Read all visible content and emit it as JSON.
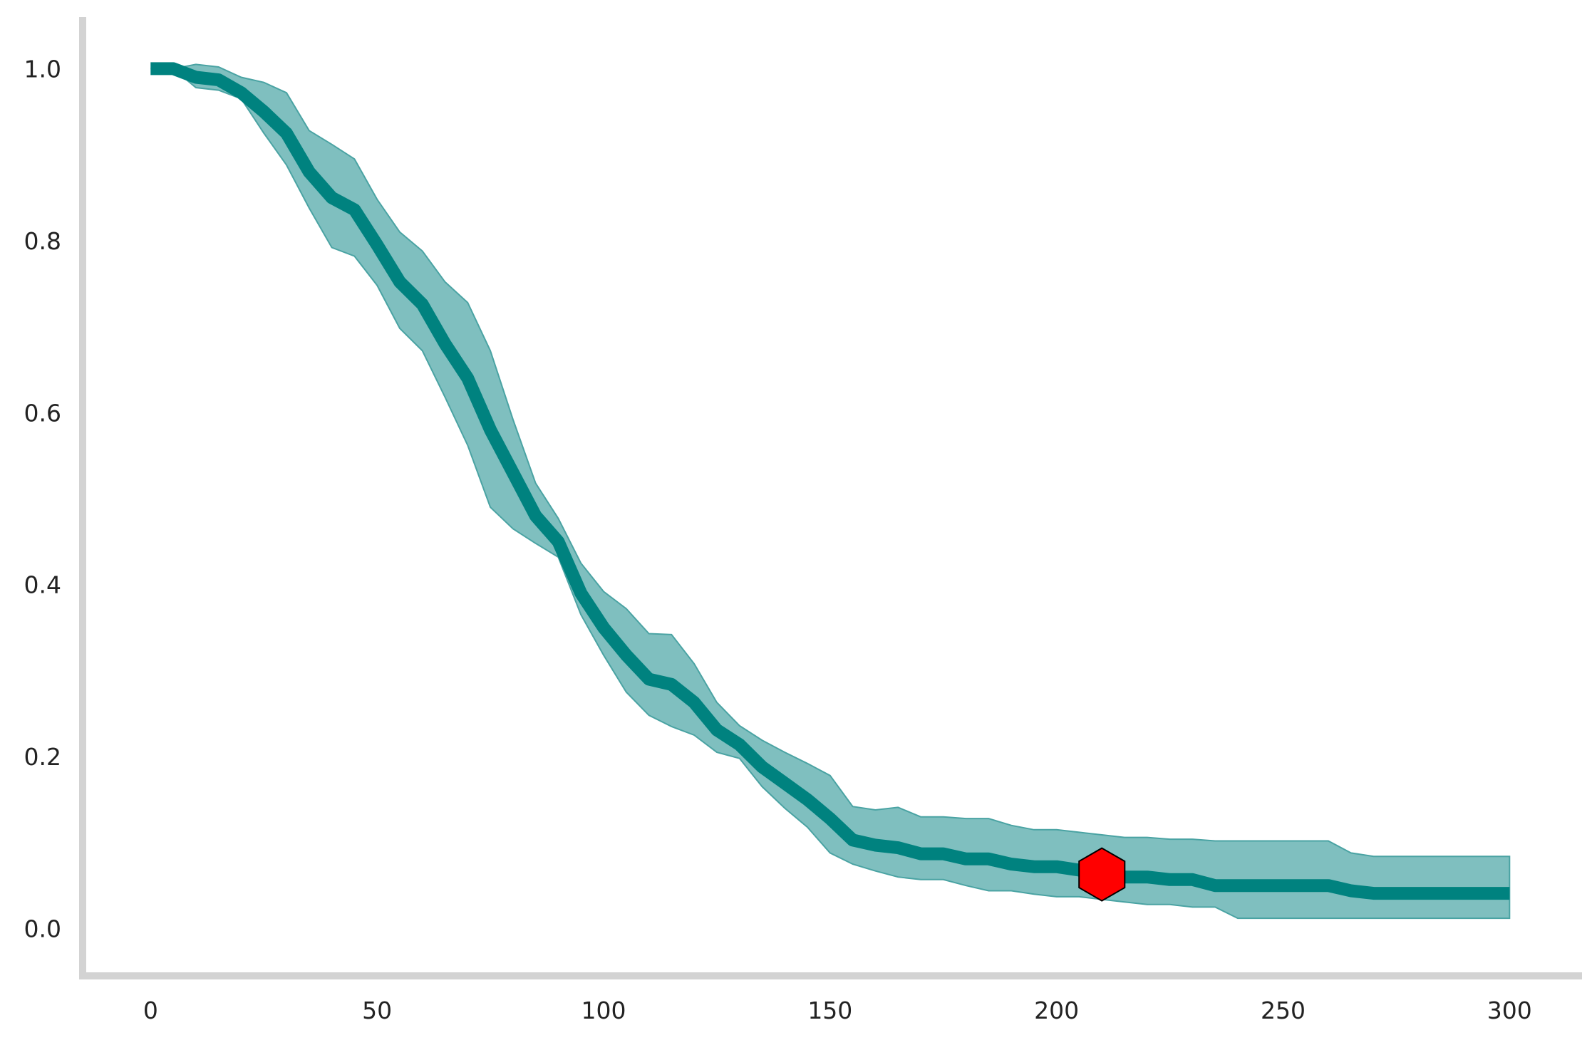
{
  "chart_data": {
    "type": "line",
    "title": "",
    "xlabel": "",
    "ylabel": "",
    "xlim": [
      -15,
      316
    ],
    "ylim": [
      -0.055,
      1.06
    ],
    "x_ticks": [
      0,
      50,
      100,
      150,
      200,
      250,
      300
    ],
    "x_tick_labels": [
      "0",
      "50",
      "100",
      "150",
      "200",
      "250",
      "300"
    ],
    "y_ticks": [
      0.0,
      0.2,
      0.4,
      0.6,
      0.8,
      1.0
    ],
    "y_tick_labels": [
      "0.0",
      "0.2",
      "0.4",
      "0.6",
      "0.8",
      "1.0"
    ],
    "grid": false,
    "legend": "none",
    "colors": {
      "line": "#00827f",
      "band": "#7fbfbf",
      "band_edge": "#4aa3a3",
      "marker": "#ff0000",
      "marker_edge": "#000000",
      "axis": "#d3d3d3"
    },
    "series": [
      {
        "x": [
          0,
          5,
          10,
          15,
          20,
          25,
          30,
          35,
          40,
          45,
          50,
          55,
          60,
          65,
          70,
          75,
          80,
          85,
          90,
          95,
          100,
          105,
          110,
          115,
          120,
          125,
          130,
          135,
          140,
          145,
          150,
          155,
          160,
          165,
          170,
          175,
          180,
          185,
          190,
          195,
          200,
          205,
          210,
          215,
          220,
          225,
          230,
          235,
          240,
          245,
          250,
          255,
          260,
          265,
          270,
          275,
          280,
          285,
          290,
          295,
          300
        ],
        "y": [
          1.0,
          1.0,
          0.99,
          0.987,
          0.972,
          0.95,
          0.925,
          0.88,
          0.85,
          0.836,
          0.795,
          0.752,
          0.726,
          0.68,
          0.64,
          0.58,
          0.53,
          0.48,
          0.45,
          0.39,
          0.35,
          0.318,
          0.29,
          0.284,
          0.263,
          0.231,
          0.214,
          0.188,
          0.169,
          0.15,
          0.128,
          0.103,
          0.097,
          0.094,
          0.087,
          0.087,
          0.081,
          0.081,
          0.075,
          0.072,
          0.072,
          0.068,
          0.063,
          0.06,
          0.06,
          0.057,
          0.057,
          0.05,
          0.05,
          0.05,
          0.05,
          0.05,
          0.05,
          0.044,
          0.041,
          0.041,
          0.041,
          0.041,
          0.041,
          0.041,
          0.041
        ],
        "lower": [
          1.0,
          1.0,
          0.978,
          0.975,
          0.965,
          0.925,
          0.888,
          0.838,
          0.792,
          0.782,
          0.748,
          0.698,
          0.672,
          0.618,
          0.562,
          0.49,
          0.465,
          0.448,
          0.432,
          0.365,
          0.318,
          0.275,
          0.248,
          0.235,
          0.225,
          0.205,
          0.198,
          0.165,
          0.14,
          0.118,
          0.088,
          0.075,
          0.067,
          0.06,
          0.057,
          0.057,
          0.05,
          0.044,
          0.044,
          0.04,
          0.037,
          0.037,
          0.034,
          0.031,
          0.028,
          0.028,
          0.025,
          0.025,
          0.012,
          0.012,
          0.012,
          0.012,
          0.012,
          0.012,
          0.012,
          0.012,
          0.012,
          0.012,
          0.012,
          0.012,
          0.012
        ],
        "upper": [
          1.0,
          1.0,
          1.005,
          1.002,
          0.99,
          0.984,
          0.972,
          0.928,
          0.912,
          0.895,
          0.848,
          0.81,
          0.788,
          0.752,
          0.728,
          0.672,
          0.592,
          0.518,
          0.477,
          0.425,
          0.392,
          0.372,
          0.343,
          0.342,
          0.308,
          0.263,
          0.236,
          0.219,
          0.205,
          0.192,
          0.178,
          0.142,
          0.138,
          0.141,
          0.13,
          0.13,
          0.128,
          0.128,
          0.12,
          0.115,
          0.115,
          0.112,
          0.109,
          0.106,
          0.106,
          0.104,
          0.104,
          0.102,
          0.102,
          0.102,
          0.102,
          0.102,
          0.102,
          0.088,
          0.084,
          0.084,
          0.084,
          0.084,
          0.084,
          0.084,
          0.084
        ]
      }
    ],
    "marker": {
      "shape": "hexagon",
      "x": 210,
      "y": 0.063
    }
  }
}
